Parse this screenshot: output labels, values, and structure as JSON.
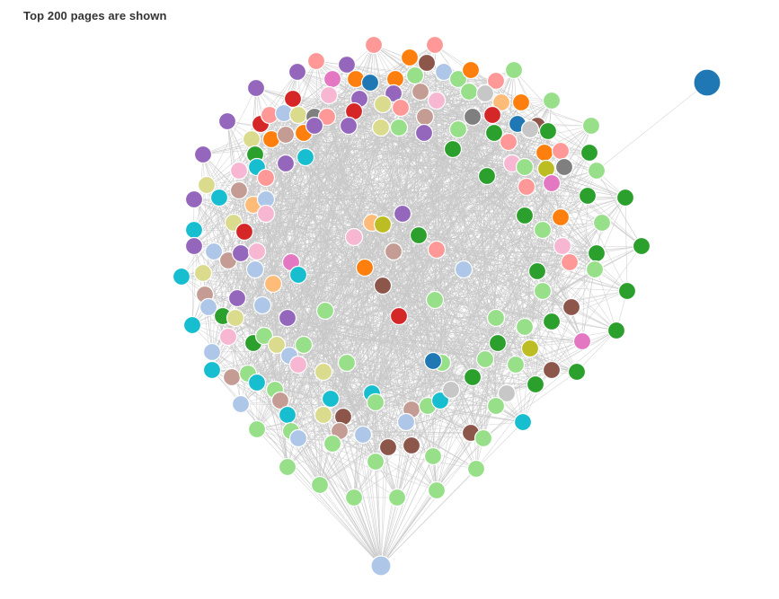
{
  "caption": "Top 200 pages are shown",
  "palette": [
    "#1f77b4",
    "#aec7e8",
    "#ff7f0e",
    "#ffbb78",
    "#2ca02c",
    "#98df8a",
    "#d62728",
    "#ff9896",
    "#9467bd",
    "#c5b0d5",
    "#8c564b",
    "#c49c94",
    "#e377c2",
    "#f7b6d2",
    "#7f7f7f",
    "#c7c7c7",
    "#bcbd22",
    "#dbdb8d",
    "#17becf",
    "#9edae5"
  ]
}
